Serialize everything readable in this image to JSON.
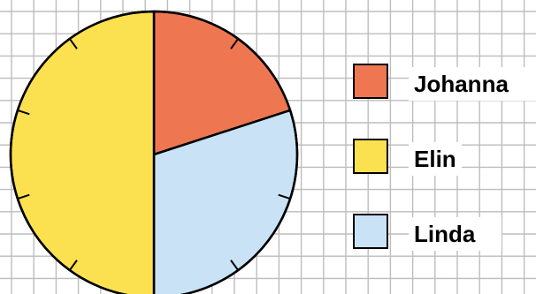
{
  "chart_data": {
    "type": "pie",
    "title": "",
    "slices": [
      {
        "name": "Johanna",
        "value": 0.2,
        "color": "#ee7752"
      },
      {
        "name": "Linda",
        "value": 0.3,
        "color": "#c9e2f5"
      },
      {
        "name": "Elin",
        "value": 0.5,
        "color": "#fbe050"
      }
    ],
    "ticks": 10,
    "grid": true,
    "legend_position": "right",
    "legend": [
      {
        "label": "Johanna",
        "color": "#ee7752"
      },
      {
        "label": "Elin",
        "color": "#fbe050"
      },
      {
        "label": "Linda",
        "color": "#c9e2f5"
      }
    ]
  }
}
